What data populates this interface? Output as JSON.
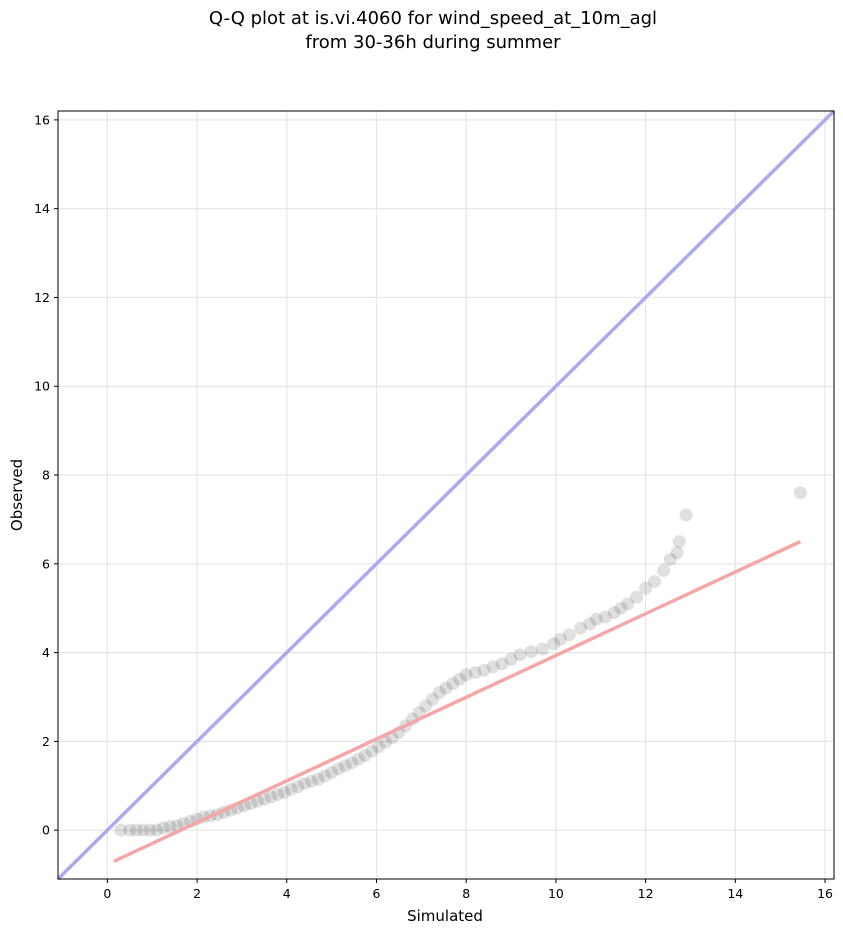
{
  "chart_data": {
    "type": "scatter",
    "title_line1": "Q-Q plot at is.vi.4060 for wind_speed_at_10m_agl",
    "title_line2": "from 30-36h during summer",
    "xlabel": "Simulated",
    "ylabel": "Observed",
    "xlim": [
      -1.1,
      16.2
    ],
    "ylim": [
      -1.1,
      16.2
    ],
    "xticks": [
      0,
      2,
      4,
      6,
      8,
      10,
      12,
      14,
      16
    ],
    "yticks": [
      0,
      2,
      4,
      6,
      8,
      10,
      12,
      14,
      16
    ],
    "grid": true,
    "colors": {
      "identity_line": "#aaaaf0",
      "fit_line": "#f5a6a6",
      "points": "#222222"
    },
    "identity_line": {
      "x": [
        -1.1,
        16.2
      ],
      "y": [
        -1.1,
        16.2
      ]
    },
    "fit_line": {
      "x": [
        0.15,
        15.45
      ],
      "y": [
        -0.7,
        6.5
      ]
    },
    "points": [
      [
        0.3,
        0.0
      ],
      [
        0.5,
        0.0
      ],
      [
        0.65,
        0.0
      ],
      [
        0.8,
        0.0
      ],
      [
        0.95,
        0.0
      ],
      [
        1.1,
        0.0
      ],
      [
        1.25,
        0.05
      ],
      [
        1.4,
        0.08
      ],
      [
        1.55,
        0.1
      ],
      [
        1.7,
        0.15
      ],
      [
        1.85,
        0.2
      ],
      [
        2.0,
        0.25
      ],
      [
        2.15,
        0.3
      ],
      [
        2.3,
        0.32
      ],
      [
        2.45,
        0.35
      ],
      [
        2.6,
        0.4
      ],
      [
        2.75,
        0.45
      ],
      [
        2.9,
        0.5
      ],
      [
        3.05,
        0.55
      ],
      [
        3.2,
        0.6
      ],
      [
        3.35,
        0.65
      ],
      [
        3.5,
        0.7
      ],
      [
        3.65,
        0.75
      ],
      [
        3.8,
        0.8
      ],
      [
        3.95,
        0.85
      ],
      [
        4.1,
        0.92
      ],
      [
        4.25,
        0.98
      ],
      [
        4.4,
        1.05
      ],
      [
        4.55,
        1.1
      ],
      [
        4.7,
        1.15
      ],
      [
        4.85,
        1.22
      ],
      [
        5.0,
        1.3
      ],
      [
        5.15,
        1.38
      ],
      [
        5.3,
        1.45
      ],
      [
        5.45,
        1.52
      ],
      [
        5.6,
        1.6
      ],
      [
        5.75,
        1.68
      ],
      [
        5.9,
        1.78
      ],
      [
        6.05,
        1.88
      ],
      [
        6.2,
        1.98
      ],
      [
        6.35,
        2.08
      ],
      [
        6.5,
        2.2
      ],
      [
        6.65,
        2.35
      ],
      [
        6.8,
        2.5
      ],
      [
        6.95,
        2.65
      ],
      [
        7.1,
        2.8
      ],
      [
        7.25,
        2.95
      ],
      [
        7.4,
        3.1
      ],
      [
        7.55,
        3.2
      ],
      [
        7.7,
        3.3
      ],
      [
        7.85,
        3.4
      ],
      [
        8.0,
        3.5
      ],
      [
        8.2,
        3.55
      ],
      [
        8.4,
        3.6
      ],
      [
        8.6,
        3.68
      ],
      [
        8.8,
        3.75
      ],
      [
        9.0,
        3.85
      ],
      [
        9.2,
        3.95
      ],
      [
        9.45,
        4.02
      ],
      [
        9.7,
        4.08
      ],
      [
        9.95,
        4.2
      ],
      [
        10.1,
        4.3
      ],
      [
        10.3,
        4.4
      ],
      [
        10.55,
        4.55
      ],
      [
        10.75,
        4.65
      ],
      [
        10.9,
        4.75
      ],
      [
        11.1,
        4.8
      ],
      [
        11.3,
        4.9
      ],
      [
        11.45,
        5.0
      ],
      [
        11.6,
        5.1
      ],
      [
        11.8,
        5.25
      ],
      [
        12.0,
        5.45
      ],
      [
        12.2,
        5.6
      ],
      [
        12.4,
        5.85
      ],
      [
        12.55,
        6.1
      ],
      [
        12.7,
        6.25
      ],
      [
        12.75,
        6.5
      ],
      [
        12.9,
        7.1
      ],
      [
        15.45,
        7.6
      ]
    ]
  }
}
